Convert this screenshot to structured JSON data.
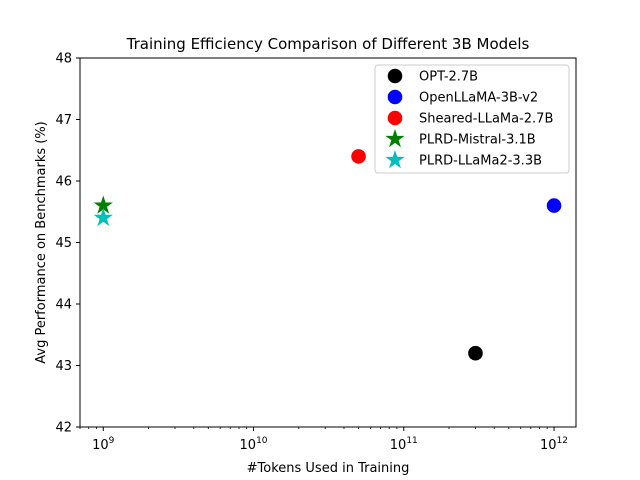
{
  "chart_data": {
    "type": "scatter",
    "title": "Training Efficiency Comparison of Different 3B Models",
    "xlabel": "#Tokens Used in Training",
    "ylabel": "Avg Performance on Benchmarks (%)",
    "xscale": "log",
    "xlim": [
      700000000,
      1400000000000
    ],
    "ylim": [
      42,
      48
    ],
    "x_ticks": [
      {
        "value": 1000000000.0,
        "base": "10",
        "exp": "9"
      },
      {
        "value": 10000000000.0,
        "base": "10",
        "exp": "10"
      },
      {
        "value": 100000000000.0,
        "base": "10",
        "exp": "11"
      },
      {
        "value": 1000000000000.0,
        "base": "10",
        "exp": "12"
      }
    ],
    "y_ticks": [
      42,
      43,
      44,
      45,
      46,
      47,
      48
    ],
    "grid": false,
    "legend_position": "top-right",
    "series": [
      {
        "name": "OPT-2.7B",
        "marker": "circle",
        "color": "#000000",
        "points": [
          {
            "x": 300000000000,
            "y": 43.2
          }
        ]
      },
      {
        "name": "OpenLLaMA-3B-v2",
        "marker": "circle",
        "color": "#0000ff",
        "points": [
          {
            "x": 1000000000000,
            "y": 45.6
          }
        ]
      },
      {
        "name": "Sheared-LLaMa-2.7B",
        "marker": "circle",
        "color": "#ff0000",
        "points": [
          {
            "x": 50000000000,
            "y": 46.4
          }
        ]
      },
      {
        "name": "PLRD-Mistral-3.1B",
        "marker": "star",
        "color": "#008000",
        "points": [
          {
            "x": 1000000000,
            "y": 45.6
          }
        ]
      },
      {
        "name": "PLRD-LLaMa2-3.3B",
        "marker": "star",
        "color": "#00bfbf",
        "points": [
          {
            "x": 1000000000,
            "y": 45.4
          }
        ]
      }
    ]
  }
}
